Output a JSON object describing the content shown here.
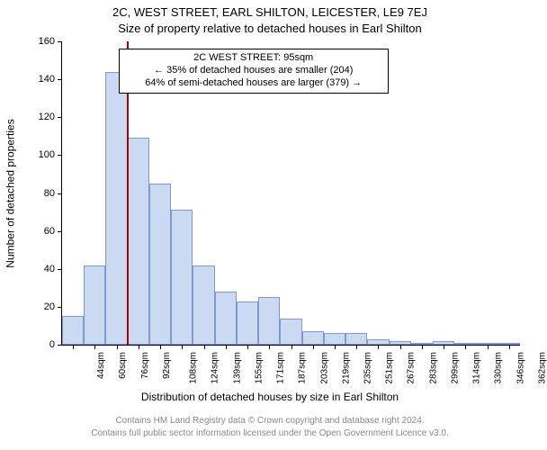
{
  "titles": {
    "line1": "2C, WEST STREET, EARL SHILTON, LEICESTER, LE9 7EJ",
    "line2": "Size of property relative to detached houses in Earl Shilton"
  },
  "chart": {
    "type": "histogram",
    "bar_fill": "#ccd9f2",
    "bar_stroke": "#7f99cc",
    "bar_stroke_width": 1,
    "marker_color": "#aa0000",
    "background_color": "#ffffff",
    "axis_color": "#000000",
    "ylim": [
      0,
      160
    ],
    "ytick_step": 20,
    "ylabel": "Number of detached properties",
    "xlabel": "Distribution of detached houses by size in Earl Shilton",
    "bins": [
      {
        "label": "44sqm",
        "value": 15
      },
      {
        "label": "60sqm",
        "value": 42
      },
      {
        "label": "76sqm",
        "value": 144
      },
      {
        "label": "92sqm",
        "value": 109
      },
      {
        "label": "108sqm",
        "value": 85
      },
      {
        "label": "124sqm",
        "value": 71
      },
      {
        "label": "139sqm",
        "value": 42
      },
      {
        "label": "155sqm",
        "value": 28
      },
      {
        "label": "171sqm",
        "value": 23
      },
      {
        "label": "187sqm",
        "value": 25
      },
      {
        "label": "203sqm",
        "value": 14
      },
      {
        "label": "219sqm",
        "value": 7
      },
      {
        "label": "235sqm",
        "value": 6
      },
      {
        "label": "251sqm",
        "value": 6
      },
      {
        "label": "267sqm",
        "value": 3
      },
      {
        "label": "283sqm",
        "value": 2
      },
      {
        "label": "299sqm",
        "value": 1
      },
      {
        "label": "314sqm",
        "value": 2
      },
      {
        "label": "330sqm",
        "value": 1
      },
      {
        "label": "346sqm",
        "value": 1
      },
      {
        "label": "362sqm",
        "value": 1
      }
    ],
    "marker_at_bin_boundary": 3,
    "annotation": {
      "line1": "2C WEST STREET: 95sqm",
      "line2": "← 35% of detached houses are smaller (204)",
      "line3": "64% of semi-detached houses are larger (379) →",
      "border_color": "#000000",
      "bg_color": "#ffffff",
      "fontsize": 11
    },
    "title_fontsize": 13,
    "axis_label_fontsize": 12,
    "tick_fontsize": 11
  },
  "footer": {
    "line1": "Contains HM Land Registry data © Crown copyright and database right 2024.",
    "line2": "Contains full public sector information licensed under the Open Government Licence v3.0.",
    "color": "#888888",
    "fontsize": 10
  }
}
